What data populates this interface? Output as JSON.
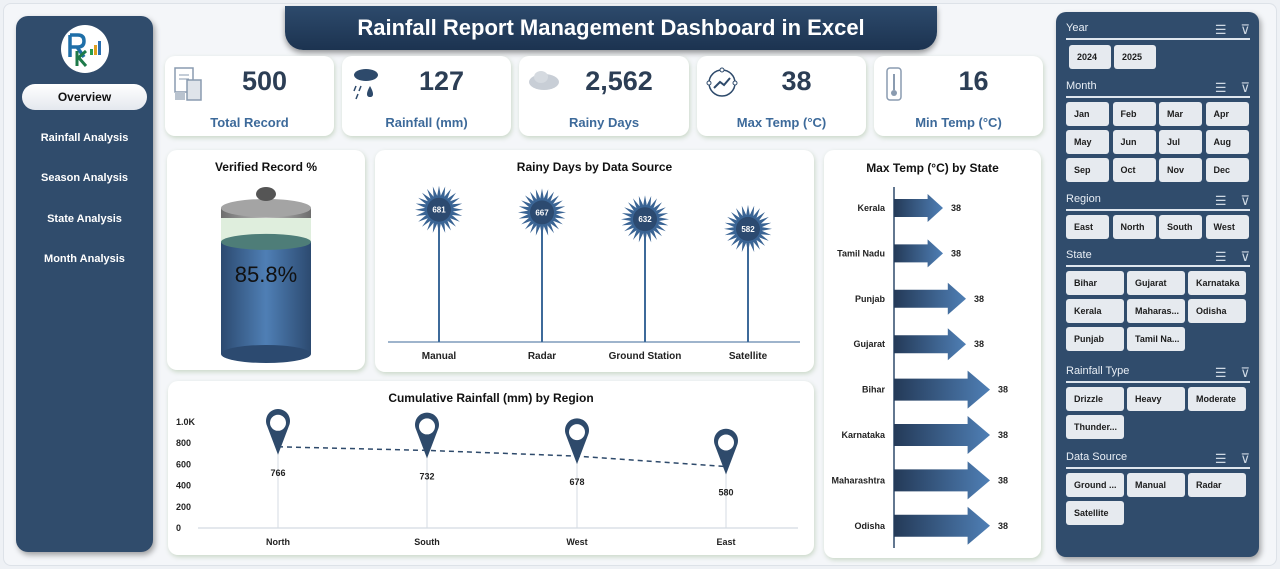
{
  "title": "Rainfall Report Management Dashboard in Excel",
  "nav": [
    "Overview",
    "Rainfall Analysis",
    "Season Analysis",
    "State Analysis",
    "Month Analysis"
  ],
  "kpis": [
    {
      "value": "500",
      "label": "Total Record",
      "icon": "invoice-calculator-icon"
    },
    {
      "value": "127",
      "label": "Rainfall (mm)",
      "icon": "rain-cloud-icon"
    },
    {
      "value": "2,562",
      "label": "Rainy Days",
      "icon": "cloud-icon"
    },
    {
      "value": "38",
      "label": "Max Temp (°C)",
      "icon": "temperature-cycle-icon"
    },
    {
      "value": "16",
      "label": "Min Temp (°C)",
      "icon": "thermometer-icon"
    }
  ],
  "verified": {
    "title": "Verified Record %",
    "value": "85.8%",
    "fraction": 0.858
  },
  "colors": {
    "navy": "#304c6c",
    "accent": "#3d6a9a",
    "label": "#3d6a9a"
  },
  "chart_data": [
    {
      "type": "bar",
      "title": "Rainy Days by Data Source",
      "categories": [
        "Manual",
        "Radar",
        "Ground Station",
        "Satellite"
      ],
      "values": [
        681,
        667,
        632,
        582
      ],
      "labels": [
        "681",
        "667",
        "632",
        "582"
      ]
    },
    {
      "type": "line",
      "title": "Cumulative Rainfall (mm) by Region",
      "categories": [
        "North",
        "South",
        "West",
        "East"
      ],
      "values": [
        766,
        732,
        678,
        580
      ],
      "labels": [
        "766",
        "732",
        "678",
        "580"
      ],
      "ylim": [
        0,
        1000
      ],
      "yticks": [
        "0",
        "200",
        "400",
        "600",
        "800",
        "1.0K"
      ]
    },
    {
      "type": "bar",
      "orientation": "horizontal",
      "title": "Max Temp (°C) by State",
      "categories": [
        "Kerala",
        "Tamil Nadu",
        "Punjab",
        "Gujarat",
        "Bihar",
        "Karnataka",
        "Maharashtra",
        "Odisha"
      ],
      "values": [
        38,
        38,
        38,
        38,
        38,
        38,
        38,
        38
      ],
      "labels": [
        "38",
        "38",
        "38",
        "38",
        "38",
        "38",
        "38",
        "38"
      ]
    }
  ],
  "slicers": [
    {
      "title": "Year",
      "items": [
        "2024",
        "2025"
      ]
    },
    {
      "title": "Month",
      "items": [
        "Jan",
        "Feb",
        "Mar",
        "Apr",
        "May",
        "Jun",
        "Jul",
        "Aug",
        "Sep",
        "Oct",
        "Nov",
        "Dec"
      ]
    },
    {
      "title": "Region",
      "items": [
        "East",
        "North",
        "South",
        "West"
      ]
    },
    {
      "title": "State",
      "items": [
        "Bihar",
        "Gujarat",
        "Karnataka",
        "Kerala",
        "Maharas...",
        "Odisha",
        "Punjab",
        "Tamil Na..."
      ]
    },
    {
      "title": "Rainfall Type",
      "items": [
        "Drizzle",
        "Heavy",
        "Moderate",
        "Thunder..."
      ]
    },
    {
      "title": "Data Source",
      "items": [
        "Ground ...",
        "Manual",
        "Radar",
        "Satellite"
      ]
    }
  ]
}
